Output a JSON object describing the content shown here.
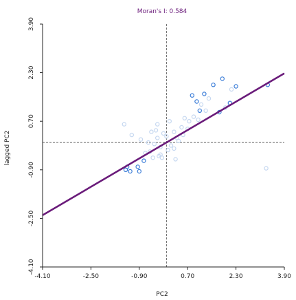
{
  "chart_data": {
    "type": "scatter",
    "title": "Moran's I: 0.584",
    "xlabel": "PC2",
    "ylabel": "lagged PC2",
    "xlim": [
      -4.1,
      3.9
    ],
    "ylim": [
      -4.1,
      3.9
    ],
    "x_ticks": [
      -4.1,
      -2.5,
      -0.9,
      0.7,
      2.3,
      3.9
    ],
    "x_tick_labels": [
      "-4.10",
      "-2.50",
      "-0.90",
      "0.70",
      "2.30",
      "3.90"
    ],
    "y_ticks": [
      -4.1,
      -2.5,
      -0.9,
      0.7,
      2.3,
      3.9
    ],
    "y_tick_labels": [
      "-4.10",
      "-2.50",
      "-0.90",
      "0.70",
      "2.30",
      "3.90"
    ],
    "x_mean": 0.0,
    "y_mean": 0.0,
    "regression": {
      "slope": 0.584,
      "intercept": 0.0
    },
    "series": [
      {
        "role": "highlighted",
        "color": "#3b7dd8",
        "x": [
          0.85,
          1.0,
          1.1,
          1.25,
          1.55,
          1.75,
          1.85,
          2.1,
          2.3,
          3.35,
          -1.3,
          -1.35,
          -1.2,
          -0.95,
          -0.9,
          -0.75
        ],
        "y": [
          1.55,
          1.35,
          1.05,
          1.6,
          1.9,
          1.0,
          2.1,
          1.3,
          1.85,
          1.9,
          -0.8,
          -0.9,
          -0.95,
          -0.8,
          -0.95,
          -0.6
        ]
      },
      {
        "role": "other",
        "color": "#c5d7f0",
        "x": [
          -1.4,
          -1.15,
          -0.85,
          -0.6,
          -0.5,
          -0.35,
          -0.3,
          -0.2,
          -0.25,
          -0.15,
          0.0,
          0.15,
          0.25,
          0.35,
          0.5,
          0.6,
          0.75,
          0.9,
          1.05,
          1.15,
          1.3,
          1.4,
          -0.55,
          -0.45,
          -0.1,
          0.05,
          -0.7,
          -0.3,
          0.4,
          0.55,
          0.7,
          0.25,
          -0.4,
          0.1,
          1.95,
          2.15,
          3.3,
          -0.2,
          0.3
        ],
        "y": [
          0.6,
          0.25,
          0.1,
          0.0,
          0.35,
          0.4,
          0.15,
          -0.15,
          -0.45,
          -0.5,
          0.2,
          -0.1,
          0.35,
          0.15,
          0.5,
          0.8,
          0.7,
          0.85,
          0.75,
          1.25,
          1.05,
          1.45,
          -0.3,
          -0.5,
          0.3,
          -0.25,
          -0.35,
          0.6,
          0.05,
          0.25,
          0.45,
          -0.2,
          -0.05,
          0.7,
          1.15,
          1.75,
          -0.85,
          -0.4,
          -0.55
        ]
      }
    ],
    "colors": {
      "title": "#6a1b7a",
      "regression_line": "#6a1b7a",
      "mean_lines": "#666666",
      "axes": "#222222"
    }
  }
}
